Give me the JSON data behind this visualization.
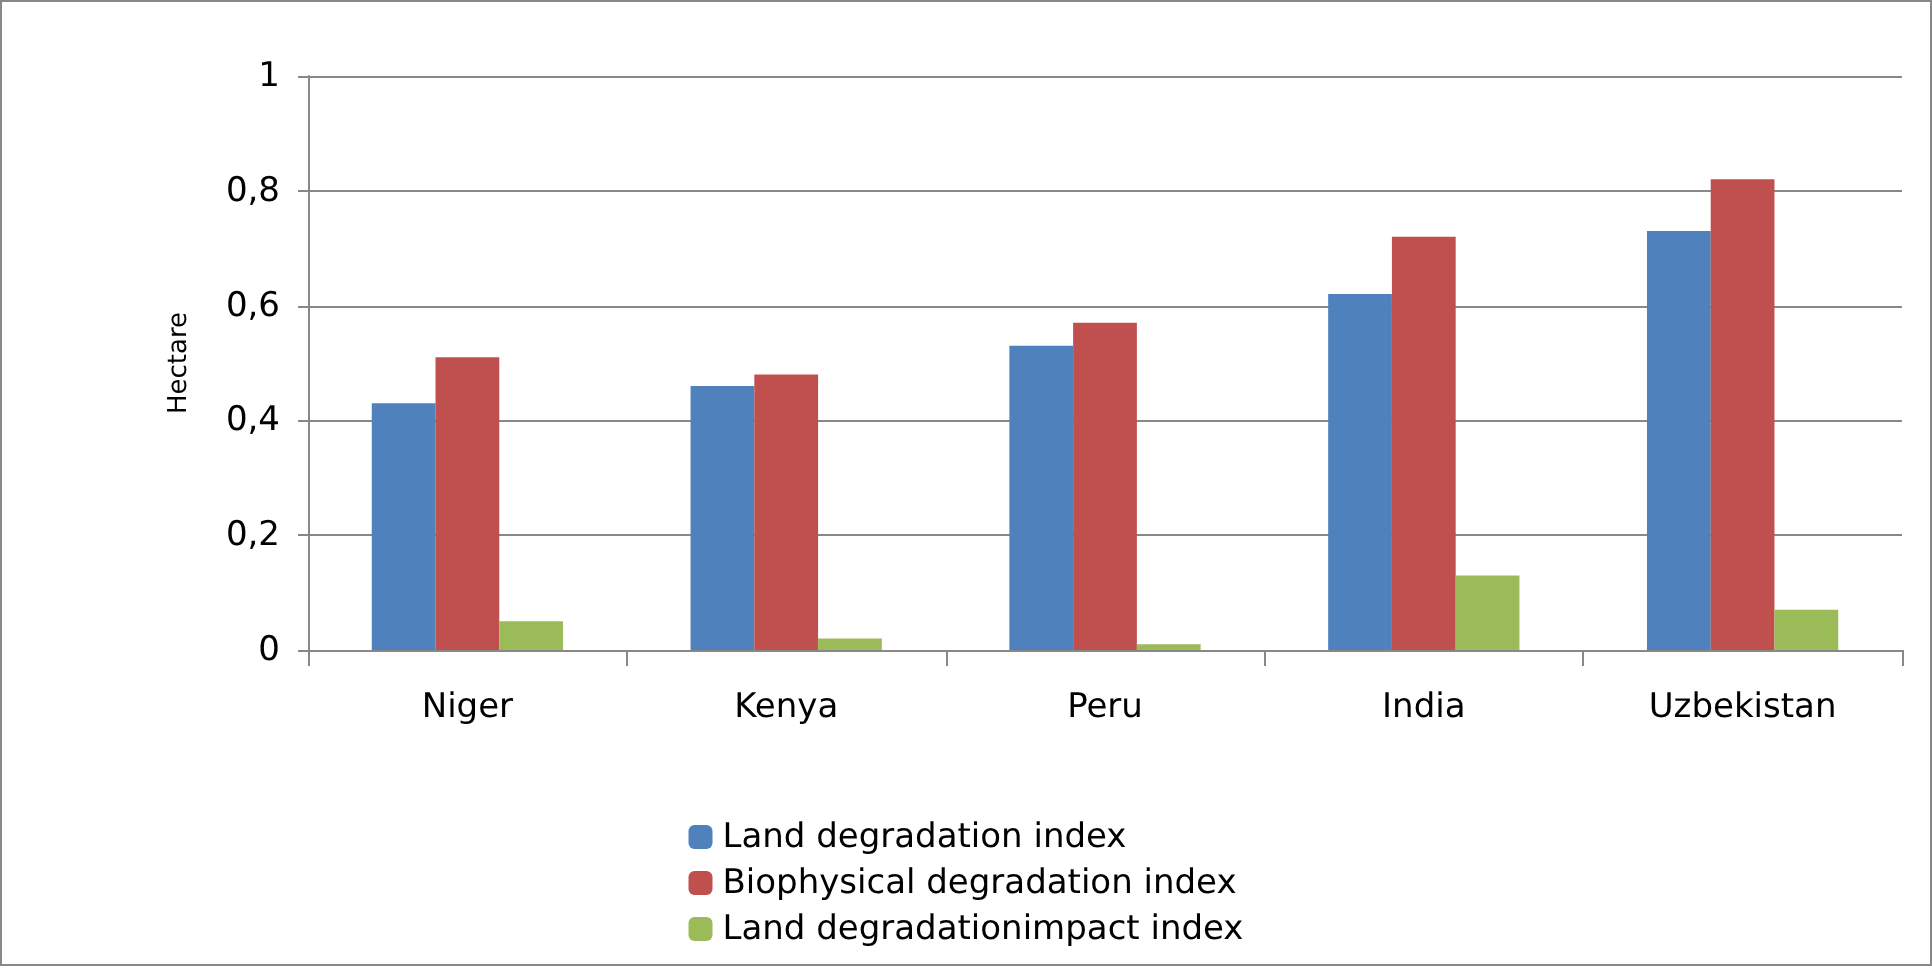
{
  "chart_data": {
    "type": "bar",
    "ylabel": "Hectare",
    "categories": [
      "Niger",
      "Kenya",
      "Peru",
      "India",
      "Uzbekistan"
    ],
    "series": [
      {
        "name": "Land degradation index",
        "color": "#4f81bd",
        "values": [
          0.43,
          0.46,
          0.53,
          0.62,
          0.73
        ]
      },
      {
        "name": "Biophysical degradation index",
        "color": "#c0504d",
        "values": [
          0.51,
          0.48,
          0.57,
          0.72,
          0.82
        ]
      },
      {
        "name": "Land degradationimpact index",
        "color": "#9bbb59",
        "values": [
          0.05,
          0.02,
          0.01,
          0.13,
          0.07
        ]
      }
    ],
    "ylim": [
      0,
      1
    ],
    "yticks": [
      {
        "value": 0,
        "label": "0"
      },
      {
        "value": 0.2,
        "label": "0,2"
      },
      {
        "value": 0.4,
        "label": "0,4"
      },
      {
        "value": 0.6,
        "label": "0,6"
      },
      {
        "value": 0.8,
        "label": "0,8"
      },
      {
        "value": 1,
        "label": "1"
      }
    ],
    "grid": "y",
    "legend": "bottom"
  }
}
